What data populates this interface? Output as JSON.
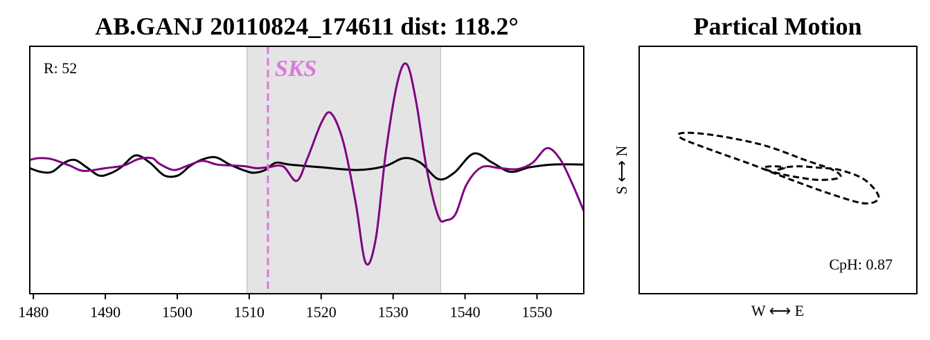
{
  "chart_data": [
    {
      "type": "line",
      "title": "AB.GANJ 20110824_174611 dist: 118.2°",
      "xlim": [
        1479.5,
        1556.5
      ],
      "x_ticks": [
        1480,
        1490,
        1500,
        1510,
        1520,
        1530,
        1540,
        1550
      ],
      "window": [
        1509.7,
        1536.6
      ],
      "phase": {
        "label": "SKS",
        "time": 1512.6,
        "color": "#dd77dd"
      },
      "annotation": "R: 52",
      "series": [
        {
          "color": "#000000",
          "x": [
            1479.5,
            1481,
            1482.6,
            1484.3,
            1485.8,
            1487.4,
            1489.1,
            1490.6,
            1492.2,
            1494.2,
            1496.2,
            1498.2,
            1500.1,
            1501.7,
            1503.3,
            1505.3,
            1507.3,
            1509.5,
            1510.7,
            1512.2,
            1513.7,
            1515.6,
            1520,
            1525,
            1528.8,
            1531.5,
            1533.8,
            1536.3,
            1538.5,
            1541.2,
            1543.8,
            1546.3,
            1549,
            1552.2,
            1556.5
          ],
          "y": [
            0.2,
            -0.2,
            -0.2,
            0.8,
            1.1,
            0.3,
            -0.6,
            -0.4,
            0.3,
            1.6,
            0.8,
            -0.6,
            -0.6,
            0.4,
            1.1,
            1.4,
            0.6,
            -0.1,
            -0.3,
            0,
            0.8,
            0.6,
            0.3,
            0,
            0.4,
            1.3,
            0.8,
            -1,
            -0.3,
            1.8,
            0.8,
            -0.2,
            0.3,
            0.6,
            0.6
          ]
        },
        {
          "color": "#800080",
          "x": [
            1479.5,
            1480.7,
            1482.5,
            1485,
            1487,
            1490,
            1492.6,
            1494.6,
            1496.5,
            1497.5,
            1499.5,
            1501.5,
            1503.5,
            1505.5,
            1507.5,
            1509.5,
            1511,
            1512.6,
            1514.7,
            1516.6,
            1518.1,
            1520.1,
            1521.4,
            1523.1,
            1524.8,
            1526.2,
            1527.6,
            1529,
            1530.6,
            1531.9,
            1533.2,
            1534.7,
            1536.3,
            1537.4,
            1538.7,
            1540.2,
            1542.3,
            1544.9,
            1547.3,
            1549.4,
            1551.4,
            1553.2,
            1554.9,
            1556.5
          ],
          "y": [
            1.1,
            1.3,
            1.2,
            0.5,
            -0.1,
            0.2,
            0.5,
            1.2,
            1.3,
            0.7,
            0,
            0.5,
            1.0,
            0.6,
            0.5,
            0.4,
            0.2,
            0.3,
            0.4,
            -1.2,
            1.3,
            5.3,
            6.2,
            3,
            -3.6,
            -10.2,
            -7.5,
            2,
            9.6,
            11.6,
            7.5,
            0,
            -5.1,
            -5.5,
            -4.8,
            -1.6,
            0.3,
            0.2,
            0.1,
            0.8,
            2.4,
            1.2,
            -1.5,
            -4.5
          ]
        }
      ]
    },
    {
      "type": "scatter",
      "title": "Partical Motion",
      "xlabel": "W ⟷ E",
      "ylabel": "S ⟷ N",
      "xlim": [
        -1,
        1
      ],
      "ylim": [
        -1,
        1
      ],
      "annotation": "CpH: 0.87",
      "series": [
        {
          "style": "dashed",
          "color": "#000000",
          "x": [
            0,
            0.05,
            0.15,
            0.28,
            0.45,
            0.63,
            0.73,
            0.63,
            0.4,
            0.1,
            -0.2,
            -0.5,
            -0.7,
            -0.68,
            -0.45,
            -0.1,
            0.2,
            0.4,
            0.45,
            0.3,
            0.1,
            -0.05,
            -0.1,
            -0.03,
            0.05,
            0
          ],
          "y": [
            0,
            0.02,
            0.03,
            0.02,
            0,
            -0.08,
            -0.22,
            -0.27,
            -0.2,
            -0.08,
            0.05,
            0.17,
            0.26,
            0.3,
            0.28,
            0.2,
            0.08,
            0,
            -0.06,
            -0.08,
            -0.05,
            -0.01,
            0.02,
            0.03,
            0.02,
            0
          ]
        }
      ]
    }
  ]
}
